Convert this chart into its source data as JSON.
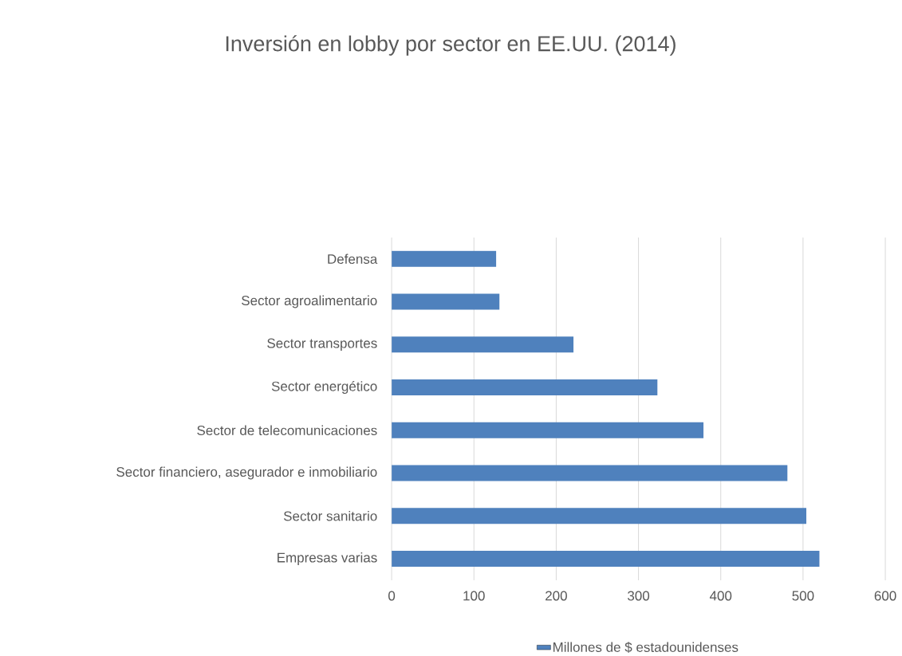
{
  "chart_data": {
    "type": "bar",
    "orientation": "horizontal",
    "title": "Inversión en lobby por sector en EE.UU. (2014)",
    "categories": [
      "Defensa",
      "Sector agroalimentario",
      "Sector transportes",
      "Sector energético",
      "Sector de telecomunicaciones",
      "Sector financiero, asegurador e inmobiliario",
      "Sector sanitario",
      "Empresas varias"
    ],
    "series": [
      {
        "name": "Millones de $ estadounidenses",
        "color": "#4f81bd",
        "values": [
          127,
          131,
          221,
          323,
          379,
          481,
          504,
          520
        ]
      }
    ],
    "xlim": [
      0,
      600
    ],
    "xticks": [
      0,
      100,
      200,
      300,
      400,
      500,
      600
    ],
    "grid": "x",
    "legend": "bottom"
  }
}
